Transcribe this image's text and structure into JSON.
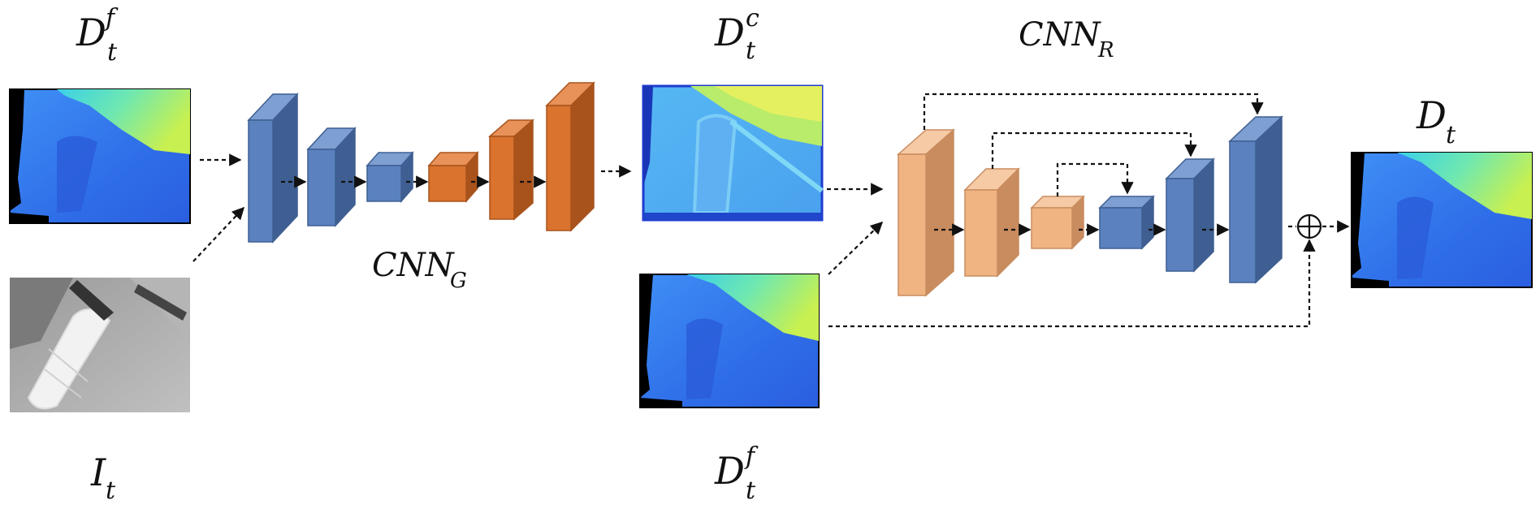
{
  "labels": {
    "input_depth": {
      "base": "D",
      "sub": "t",
      "sup": "f"
    },
    "input_image": {
      "base": "I",
      "sub": "t"
    },
    "coarse_depth": {
      "base": "D",
      "sub": "t",
      "sup": "c"
    },
    "refine_depth_input": {
      "base": "D",
      "sub": "t",
      "sup": "f"
    },
    "cnn_g": {
      "base": "CNN",
      "sub": "G"
    },
    "cnn_r": {
      "base": "CNN",
      "sub": "R"
    },
    "output_depth": {
      "base": "D",
      "sub": "t"
    }
  },
  "colors": {
    "encoder_blue": "#5b82bf",
    "encoder_blue_side": "#3f5f92",
    "encoder_blue_top": "#7d9fd2",
    "decoder_orange": "#d9732e",
    "decoder_orange_side": "#a9531c",
    "decoder_orange_top": "#e8925a",
    "refine_peach": "#f0b483",
    "refine_peach_side": "#c98c5f",
    "refine_peach_top": "#f6caa5",
    "depth_dark": "#1f3bd1",
    "depth_mid": "#3a7cf2",
    "depth_light": "#38c8f0",
    "depth_hot": "#c9f24a"
  },
  "icons": {
    "sum": "circle-plus-icon"
  }
}
